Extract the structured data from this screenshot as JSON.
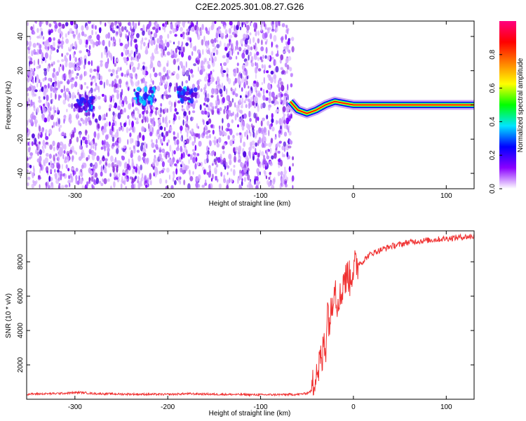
{
  "title": "C2E2.2025.301.08.27.G26",
  "chart_data": [
    {
      "type": "heatmap",
      "xlabel": "Height of straight line (km)",
      "ylabel": "Frequency (Hz)",
      "xlim": [
        -352,
        130
      ],
      "ylim": [
        -49,
        49
      ],
      "xticks": [
        -300,
        -200,
        -100,
        0,
        100
      ],
      "yticks": [
        -40,
        -20,
        0,
        20,
        40
      ],
      "noise_region_x": [
        -352,
        -65
      ],
      "track": {
        "x": [
          -68,
          -60,
          -50,
          -40,
          -30,
          -20,
          -10,
          0,
          10,
          130
        ],
        "y": [
          2,
          -3,
          -5,
          -3,
          0,
          2,
          1,
          0,
          0,
          0
        ]
      },
      "blobs": [
        {
          "x": -290,
          "y": 0
        },
        {
          "x": -225,
          "y": 5
        },
        {
          "x": -180,
          "y": 6
        }
      ],
      "colorbar": {
        "label": "Normalized spectral amplitude",
        "range": [
          0,
          1
        ],
        "ticks": [
          "0.0",
          "0.2",
          "0.4",
          "0.6",
          "0.8"
        ],
        "colors": [
          "#ffffff",
          "#8a00ff",
          "#0000ff",
          "#00e5ff",
          "#00ff00",
          "#ffff00",
          "#ff8000",
          "#ff0000",
          "#ff0080"
        ]
      }
    },
    {
      "type": "line",
      "xlabel": "Height of straight line (km)",
      "ylabel": "SNR (10 * v/v)",
      "xlim": [
        -352,
        130
      ],
      "ylim": [
        0,
        9800
      ],
      "xticks": [
        -300,
        -200,
        -100,
        0,
        100
      ],
      "yticks": [
        2000,
        4000,
        6000,
        8000
      ],
      "color": "#f03232",
      "series": [
        {
          "x": [
            -352,
            -330,
            -310,
            -295,
            -280,
            -250,
            -200,
            -180,
            -150,
            -100,
            -60,
            -50,
            -45,
            -42,
            -40,
            -38,
            -36,
            -34,
            -32,
            -30,
            -28,
            -26,
            -24,
            -22,
            -20,
            -18,
            -16,
            -14,
            -12,
            -10,
            -8,
            -6,
            -4,
            -2,
            0,
            2,
            5,
            10,
            15,
            20,
            30,
            40,
            50,
            60,
            70,
            80,
            90,
            100,
            110,
            120,
            130
          ],
          "y": [
            300,
            320,
            350,
            400,
            330,
            300,
            280,
            320,
            290,
            260,
            280,
            350,
            500,
            1200,
            2000,
            1500,
            2500,
            1800,
            3500,
            2800,
            5500,
            4500,
            5000,
            6200,
            7000,
            5500,
            6200,
            5800,
            6500,
            7300,
            6800,
            7500,
            6900,
            7400,
            7600,
            7700,
            7900,
            8000,
            8300,
            8500,
            8700,
            8900,
            9000,
            9150,
            9200,
            9250,
            9300,
            9350,
            9400,
            9450,
            9480
          ]
        }
      ]
    }
  ]
}
